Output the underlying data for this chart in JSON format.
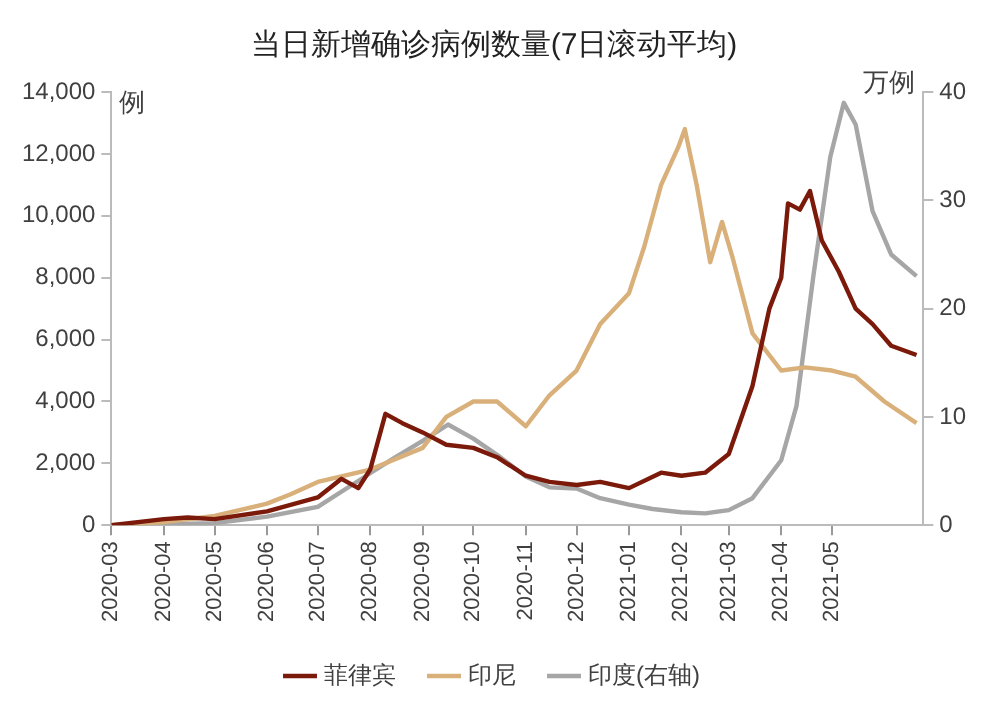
{
  "chart_data": {
    "type": "line",
    "title": "当日新增确诊病例数量(7日滚动平均)",
    "ylabel": "例",
    "y2label": "万例",
    "xlim": [
      "2020-03-01",
      "2021-06-24"
    ],
    "xticks": [
      "2020-03",
      "2020-04",
      "2020-05",
      "2020-06",
      "2020-07",
      "2020-08",
      "2020-09",
      "2020-10",
      "2020-11",
      "2020-12",
      "2021-01",
      "2021-02",
      "2021-03",
      "2021-04",
      "2021-05"
    ],
    "ylim": [
      0,
      14000
    ],
    "yticks": [
      0,
      {
        "value": 2000,
        "label": "2,000"
      },
      {
        "value": 4000,
        "label": "4,000"
      },
      {
        "value": 6000,
        "label": "6,000"
      },
      {
        "value": 8000,
        "label": "8,000"
      },
      {
        "value": 10000,
        "label": "10,000"
      },
      {
        "value": 12000,
        "label": "12,000"
      },
      {
        "value": 14000,
        "label": "14,000"
      }
    ],
    "y2lim": [
      0,
      40
    ],
    "y2ticks": [
      0,
      10,
      20,
      30,
      40
    ],
    "grid": false,
    "legend": "bottom",
    "line_style": "solid",
    "marker": "none",
    "series": [
      {
        "name": "菲律宾",
        "color": "#7b1a0a",
        "x": [
          "2020-03-01",
          "2020-04-01",
          "2020-04-15",
          "2020-05-01",
          "2020-06-01",
          "2020-07-01",
          "2020-07-15",
          "2020-07-25",
          "2020-08-01",
          "2020-08-10",
          "2020-08-20",
          "2020-09-01",
          "2020-09-15",
          "2020-10-01",
          "2020-10-15",
          "2020-11-01",
          "2020-11-15",
          "2020-12-01",
          "2020-12-15",
          "2021-01-01",
          "2021-01-20",
          "2021-02-01",
          "2021-02-15",
          "2021-03-01",
          "2021-03-15",
          "2021-03-25",
          "2021-04-01",
          "2021-04-05",
          "2021-04-12",
          "2021-04-18",
          "2021-04-25",
          "2021-05-05",
          "2021-05-15",
          "2021-05-25",
          "2021-06-05",
          "2021-06-20"
        ],
        "values": [
          0,
          200,
          250,
          200,
          450,
          900,
          1500,
          1200,
          1800,
          3600,
          3300,
          3000,
          2600,
          2500,
          2200,
          1600,
          1400,
          1300,
          1400,
          1200,
          1700,
          1600,
          1700,
          2300,
          4500,
          7000,
          8000,
          10400,
          10200,
          10800,
          9200,
          8200,
          7000,
          6500,
          5800,
          5500
        ]
      },
      {
        "name": "印尼",
        "color": "#d9b07a",
        "x": [
          "2020-03-01",
          "2020-04-01",
          "2020-05-01",
          "2020-06-01",
          "2020-06-15",
          "2020-07-01",
          "2020-08-01",
          "2020-09-01",
          "2020-09-15",
          "2020-10-01",
          "2020-10-15",
          "2020-11-01",
          "2020-11-15",
          "2020-12-01",
          "2020-12-15",
          "2021-01-01",
          "2021-01-10",
          "2021-01-20",
          "2021-01-30",
          "2021-02-03",
          "2021-02-10",
          "2021-02-18",
          "2021-02-25",
          "2021-03-03",
          "2021-03-15",
          "2021-04-01",
          "2021-04-15",
          "2021-05-01",
          "2021-05-15",
          "2021-06-01",
          "2021-06-20"
        ],
        "values": [
          0,
          100,
          300,
          700,
          1000,
          1400,
          1800,
          2500,
          3500,
          4000,
          4000,
          3200,
          4200,
          5000,
          6500,
          7500,
          9000,
          11000,
          12200,
          12800,
          11000,
          8500,
          9800,
          8700,
          6200,
          5000,
          5100,
          5000,
          4800,
          4000,
          3300
        ]
      },
      {
        "name": "印度(右轴)",
        "color": "#a6a6a6",
        "axis": "y2",
        "x": [
          "2020-03-01",
          "2020-04-01",
          "2020-05-01",
          "2020-06-01",
          "2020-07-01",
          "2020-08-01",
          "2020-08-15",
          "2020-09-01",
          "2020-09-16",
          "2020-10-01",
          "2020-10-15",
          "2020-11-01",
          "2020-11-15",
          "2020-12-01",
          "2020-12-15",
          "2021-01-01",
          "2021-01-15",
          "2021-02-01",
          "2021-02-15",
          "2021-03-01",
          "2021-03-15",
          "2021-04-01",
          "2021-04-10",
          "2021-04-20",
          "2021-04-30",
          "2021-05-08",
          "2021-05-15",
          "2021-05-25",
          "2021-06-05",
          "2021-06-20"
        ],
        "values": [
          0,
          0.1,
          0.2,
          0.8,
          1.7,
          4.8,
          6.2,
          7.8,
          9.3,
          8,
          6.5,
          4.5,
          3.5,
          3.4,
          2.5,
          1.9,
          1.5,
          1.2,
          1.1,
          1.4,
          2.5,
          6,
          11,
          23,
          34,
          39,
          37,
          29,
          25,
          23
        ]
      }
    ]
  }
}
